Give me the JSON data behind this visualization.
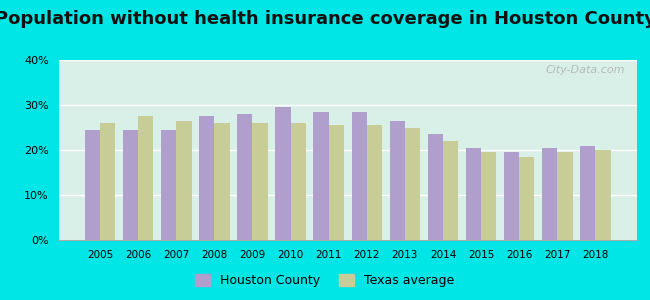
{
  "title": "Population without health insurance coverage in Houston County",
  "years": [
    2005,
    2006,
    2007,
    2008,
    2009,
    2010,
    2011,
    2012,
    2013,
    2014,
    2015,
    2016,
    2017,
    2018
  ],
  "houston_county": [
    24.5,
    24.5,
    24.5,
    27.5,
    28.0,
    29.5,
    28.5,
    28.5,
    26.5,
    23.5,
    20.5,
    19.5,
    20.5,
    21.0
  ],
  "texas_average": [
    26.0,
    27.5,
    26.5,
    26.0,
    26.0,
    26.0,
    25.5,
    25.5,
    25.0,
    22.0,
    19.5,
    18.5,
    19.5,
    20.0
  ],
  "houston_color": "#b09fcc",
  "texas_color": "#c8cc96",
  "background_top": "#e8f5e8",
  "background_bottom": "#d8f0e8",
  "outer_background": "#00e5e5",
  "ylim": [
    0,
    40
  ],
  "yticks": [
    0,
    10,
    20,
    30,
    40
  ],
  "ytick_labels": [
    "0%",
    "10%",
    "20%",
    "30%",
    "40%"
  ],
  "legend_houston": "Houston County",
  "legend_texas": "Texas average",
  "title_fontsize": 13,
  "watermark": "City-Data.com",
  "bar_width": 0.4
}
